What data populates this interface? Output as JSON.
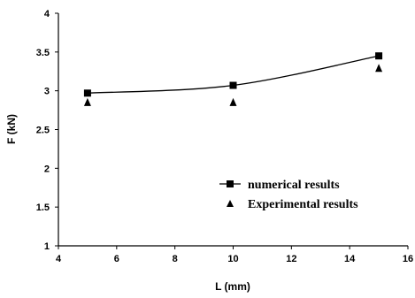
{
  "chart_data": {
    "type": "scatter",
    "xlabel": "L (mm)",
    "ylabel": "F (kN)",
    "xlim": [
      4,
      16
    ],
    "ylim": [
      1,
      4
    ],
    "xticks": [
      "4",
      "6",
      "8",
      "10",
      "12",
      "14",
      "16"
    ],
    "yticks": [
      "1",
      "1.5",
      "2",
      "2.5",
      "3",
      "3.5",
      "4"
    ],
    "grid": false,
    "legend_position": "lower-right",
    "series": [
      {
        "name": "numerical results",
        "marker": "square",
        "line": "smooth",
        "color": "#000000",
        "x": [
          5,
          10,
          15
        ],
        "y": [
          2.97,
          3.07,
          3.45
        ]
      },
      {
        "name": "Experimental results",
        "marker": "triangle",
        "line": "none",
        "color": "#000000",
        "x": [
          5,
          10,
          15
        ],
        "y": [
          2.85,
          2.85,
          3.29
        ]
      }
    ]
  }
}
